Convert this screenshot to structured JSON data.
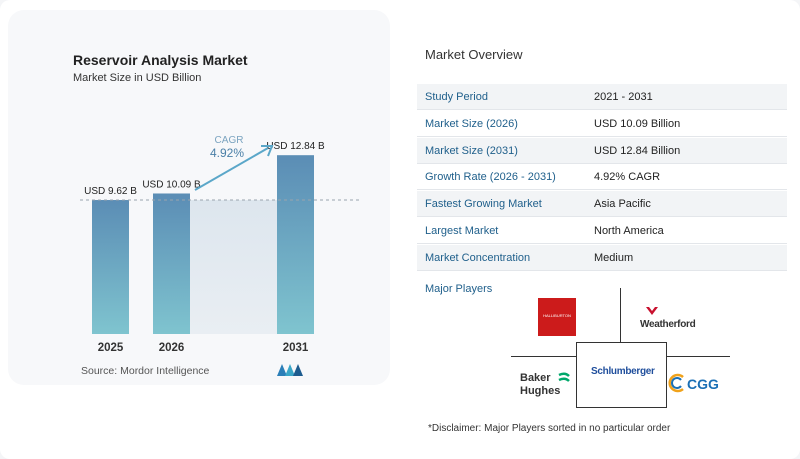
{
  "chart": {
    "title": "Reservoir Analysis Market",
    "subtitle": "Market Size in USD Billion",
    "source": "Source:  Mordor Intelligence",
    "cagr_label": "CAGR",
    "cagr_value": "4.92%"
  },
  "chart_data": {
    "type": "bar",
    "categories": [
      "2025",
      "2026",
      "2031"
    ],
    "values": [
      9.62,
      10.09,
      12.84
    ],
    "data_labels": [
      "USD 9.62 B",
      "USD 10.09 B",
      "USD 12.84 B"
    ],
    "title": "Reservoir Analysis Market",
    "subtitle": "Market Size in USD Billion",
    "xlabel": "",
    "ylabel": "",
    "ylim": [
      0,
      13.5
    ],
    "grid": false,
    "bar_color_top": "#5b8db5",
    "bar_color_bottom": "#7fc4cf",
    "annotation": "CAGR 4.92%"
  },
  "overview": {
    "title": "Market Overview",
    "rows": [
      {
        "label": "Study Period",
        "value": "2021 - 2031"
      },
      {
        "label": "Market Size (2026)",
        "value": "USD 10.09 Billion"
      },
      {
        "label": "Market Size (2031)",
        "value": "USD 12.84 Billion"
      },
      {
        "label": "Growth Rate (2026 - 2031)",
        "value": "4.92% CAGR"
      },
      {
        "label": "Fastest Growing Market",
        "value": "Asia Pacific"
      },
      {
        "label": "Largest Market",
        "value": "North America"
      },
      {
        "label": "Market Concentration",
        "value": "Medium"
      }
    ]
  },
  "players": {
    "title": "Major Players",
    "halliburton": "HALLIBURTON",
    "weatherford": "Weatherford",
    "schlumberger": "Schlumberger",
    "baker_line1": "Baker",
    "baker_line2": "Hughes",
    "cgg": "CGG"
  },
  "disclaimer": "*Disclaimer: Major Players sorted in no particular order",
  "colors": {
    "accent_blue": "#1f5f8b",
    "halliburton_red": "#cc1b1b",
    "weatherford_red": "#c8102e"
  }
}
